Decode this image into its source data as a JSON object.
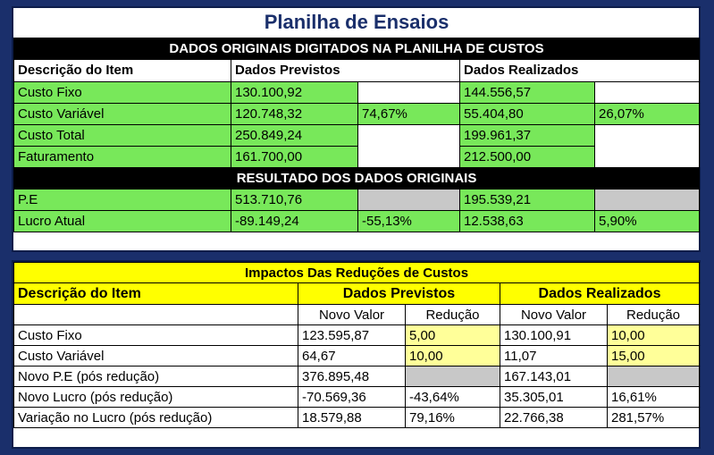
{
  "title": "Planilha de Ensaios",
  "original": {
    "band_title": "DADOS ORIGINAIS DIGITADOS NA PLANILHA DE CUSTOS",
    "headers": {
      "item": "Descrição do Item",
      "prev": "Dados Previstos",
      "real": "Dados Realizados"
    },
    "rows": [
      {
        "label": "Custo Fixo",
        "prev": "130.100,92",
        "prev_pct": "",
        "real": "144.556,57",
        "real_pct": ""
      },
      {
        "label": "Custo Variável",
        "prev": "120.748,32",
        "prev_pct": "74,67%",
        "real": "55.404,80",
        "real_pct": "26,07%"
      },
      {
        "label": "Custo Total",
        "prev": "250.849,24",
        "prev_pct": "",
        "real": "199.961,37",
        "real_pct": ""
      },
      {
        "label": "Faturamento",
        "prev": "161.700,00",
        "prev_pct": "",
        "real": "212.500,00",
        "real_pct": ""
      }
    ],
    "result_band": "RESULTADO DOS DADOS ORIGINAIS",
    "results": [
      {
        "label": "P.E",
        "prev": "513.710,76",
        "prev_pct": "",
        "real": "195.539,21",
        "real_pct": ""
      },
      {
        "label": "Lucro Atual",
        "prev": "-89.149,24",
        "prev_pct": "-55,13%",
        "real": "12.538,63",
        "real_pct": "5,90%"
      }
    ]
  },
  "impacts": {
    "band_title": "Impactos Das Reduções de Custos",
    "headers": {
      "item": "Descrição do Item",
      "prev": "Dados Previstos",
      "real": "Dados Realizados"
    },
    "sub": {
      "novo_valor": "Novo Valor",
      "reducao": "Redução"
    },
    "rows": [
      {
        "label": "Custo Fixo",
        "prev": "123.595,87",
        "prev_red": "5,00",
        "real": "130.100,91",
        "real_red": "10,00"
      },
      {
        "label": "Custo Variável",
        "prev": "64,67",
        "prev_red": "10,00",
        "real": "11,07",
        "real_red": "15,00"
      },
      {
        "label": "Novo P.E (pós redução)",
        "prev": "376.895,48",
        "prev_red": "",
        "real": "167.143,01",
        "real_red": ""
      },
      {
        "label": "Novo Lucro (pós redução)",
        "prev": "-70.569,36",
        "prev_red": "-43,64%",
        "real": "35.305,01",
        "real_red": "16,61%"
      },
      {
        "label": "Variação no Lucro (pós redução)",
        "prev": "18.579,88",
        "prev_red": "79,16%",
        "real": "22.766,38",
        "real_red": "281,57%"
      }
    ]
  },
  "colors": {
    "green": "#78e85a",
    "yellow": "#ffff00",
    "light_yellow": "#ffff99",
    "gray": "#c8c8c8",
    "navy": "#1a2f6b"
  }
}
